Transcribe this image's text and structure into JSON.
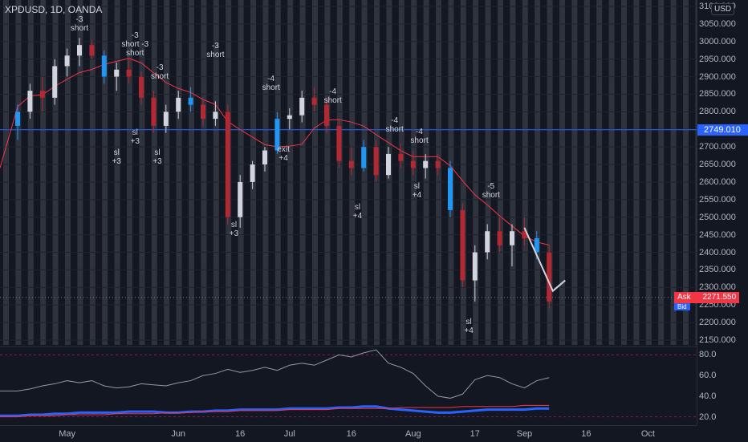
{
  "header": {
    "symbol": "XPDUSD, 1D, OANDA",
    "currency": "USD"
  },
  "price_axis": {
    "ticks": [
      "3100.000",
      "3050.000",
      "3000.000",
      "2950.000",
      "2900.000",
      "2850.000",
      "2800.000",
      "2750.000",
      "2700.000",
      "2650.000",
      "2600.000",
      "2550.000",
      "2500.000",
      "2450.000",
      "2400.000",
      "2350.000",
      "2300.000",
      "2250.000",
      "2200.000",
      "2150.000"
    ],
    "tick_values": [
      3100,
      3050,
      3000,
      2950,
      2900,
      2850,
      2800,
      2750,
      2700,
      2650,
      2600,
      2550,
      2500,
      2450,
      2400,
      2350,
      2300,
      2250,
      2200,
      2150
    ],
    "level_line": "2749.010",
    "level_value": 2749.01,
    "ask_label": "Ask",
    "ask_price": "2271.550",
    "bid_label": "Bid",
    "ask_value": 2271.55
  },
  "osc_axis": {
    "ticks": [
      "80.0",
      "60.0",
      "40.0",
      "20.0"
    ],
    "tick_values": [
      80,
      60,
      40,
      20
    ]
  },
  "time_axis": {
    "labels": [
      "May",
      "Jun",
      "16",
      "Jul",
      "16",
      "Aug",
      "17",
      "Sep",
      "16",
      "Oct"
    ],
    "label_x_index": [
      4,
      13,
      18,
      22,
      27,
      32,
      37,
      41,
      46,
      51
    ]
  },
  "annotations": [
    {
      "lines": [
        "-3",
        "short"
      ],
      "bar": 5,
      "price": 3075
    },
    {
      "lines": [
        "-3",
        "short -3",
        "short"
      ],
      "bar": 9.5,
      "price": 3030
    },
    {
      "lines": [
        "-3",
        "short"
      ],
      "bar": 11.5,
      "price": 2938
    },
    {
      "lines": [
        "sl",
        "+3"
      ],
      "bar": 8,
      "price": 2695
    },
    {
      "lines": [
        "sl",
        "+3"
      ],
      "bar": 9.5,
      "price": 2753
    },
    {
      "lines": [
        "sl",
        "+3"
      ],
      "bar": 11.3,
      "price": 2695
    },
    {
      "lines": [
        "-3",
        "short"
      ],
      "bar": 16,
      "price": 3000
    },
    {
      "lines": [
        "sl",
        "+3"
      ],
      "bar": 17.5,
      "price": 2490
    },
    {
      "lines": [
        "-4",
        "short"
      ],
      "bar": 20.5,
      "price": 2905
    },
    {
      "lines": [
        "exit",
        "+4"
      ],
      "bar": 21.5,
      "price": 2705
    },
    {
      "lines": [
        "-4",
        "short"
      ],
      "bar": 25.5,
      "price": 2870
    },
    {
      "lines": [
        "sl",
        "+4"
      ],
      "bar": 27.5,
      "price": 2540
    },
    {
      "lines": [
        "-4",
        "short"
      ],
      "bar": 30.5,
      "price": 2788
    },
    {
      "lines": [
        "-4",
        "short"
      ],
      "bar": 32.5,
      "price": 2755
    },
    {
      "lines": [
        "sl",
        "+4"
      ],
      "bar": 32.3,
      "price": 2600
    },
    {
      "lines": [
        "-5",
        "short"
      ],
      "bar": 38.3,
      "price": 2601
    },
    {
      "lines": [
        "sl",
        "+4"
      ],
      "bar": 36.5,
      "price": 2213
    }
  ],
  "chart_data": {
    "type": "candlestick",
    "title": "XPDUSD, 1D, OANDA",
    "ylim": [
      2150,
      3100
    ],
    "candles": [
      [
        2760,
        2820,
        2720,
        2800
      ],
      [
        2800,
        2880,
        2780,
        2860
      ],
      [
        2860,
        2900,
        2800,
        2840
      ],
      [
        2840,
        2950,
        2820,
        2930
      ],
      [
        2930,
        2980,
        2900,
        2960
      ],
      [
        2960,
        3010,
        2930,
        2990
      ],
      [
        2990,
        3005,
        2950,
        2960
      ],
      [
        2960,
        2975,
        2880,
        2900
      ],
      [
        2900,
        2940,
        2860,
        2920
      ],
      [
        2920,
        2950,
        2880,
        2900
      ],
      [
        2900,
        2915,
        2820,
        2840
      ],
      [
        2840,
        2860,
        2740,
        2760
      ],
      [
        2760,
        2820,
        2740,
        2800
      ],
      [
        2800,
        2860,
        2780,
        2840
      ],
      [
        2840,
        2870,
        2800,
        2820
      ],
      [
        2820,
        2840,
        2760,
        2780
      ],
      [
        2780,
        2830,
        2760,
        2800
      ],
      [
        2800,
        2820,
        2480,
        2500
      ],
      [
        2500,
        2620,
        2470,
        2600
      ],
      [
        2600,
        2660,
        2580,
        2650
      ],
      [
        2650,
        2700,
        2630,
        2690
      ],
      [
        2690,
        2800,
        2680,
        2780
      ],
      [
        2780,
        2810,
        2750,
        2790
      ],
      [
        2790,
        2860,
        2770,
        2840
      ],
      [
        2840,
        2870,
        2800,
        2820
      ],
      [
        2820,
        2840,
        2740,
        2760
      ],
      [
        2760,
        2780,
        2640,
        2660
      ],
      [
        2660,
        2700,
        2620,
        2640
      ],
      [
        2640,
        2720,
        2630,
        2700
      ],
      [
        2700,
        2720,
        2600,
        2620
      ],
      [
        2620,
        2700,
        2610,
        2680
      ],
      [
        2680,
        2710,
        2640,
        2660
      ],
      [
        2660,
        2690,
        2620,
        2640
      ],
      [
        2640,
        2680,
        2610,
        2660
      ],
      [
        2660,
        2680,
        2620,
        2640
      ],
      [
        2640,
        2660,
        2500,
        2520
      ],
      [
        2520,
        2540,
        2300,
        2320
      ],
      [
        2320,
        2420,
        2260,
        2400
      ],
      [
        2400,
        2480,
        2380,
        2460
      ],
      [
        2460,
        2500,
        2400,
        2420
      ],
      [
        2420,
        2480,
        2360,
        2460
      ],
      [
        2460,
        2500,
        2420,
        2440
      ],
      [
        2440,
        2460,
        2380,
        2400
      ],
      [
        2400,
        2420,
        2240,
        2260
      ]
    ],
    "indicator": {
      "name": "",
      "series": [
        {
          "color": "#9598a1",
          "values": [
            45,
            47,
            50,
            52,
            55,
            53,
            55,
            50,
            48,
            49,
            52,
            51,
            50,
            53,
            55,
            60,
            62,
            66,
            63,
            65,
            68,
            65,
            70,
            72,
            70,
            75,
            80,
            78,
            82,
            85,
            72,
            68,
            62,
            50,
            40,
            38,
            42,
            56,
            60,
            58,
            52,
            48,
            55,
            58
          ]
        },
        {
          "color": "#2962ff",
          "values": [
            21,
            22,
            22,
            23,
            23,
            24,
            24,
            24,
            24,
            25,
            25,
            25,
            24,
            24,
            25,
            25,
            26,
            26,
            27,
            27,
            27,
            27,
            28,
            28,
            28,
            28,
            29,
            29,
            30,
            30,
            28,
            27,
            26,
            25,
            24,
            24,
            25,
            26,
            27,
            27,
            27,
            27,
            28,
            28
          ]
        },
        {
          "color": "#f23645",
          "values": [
            20,
            21,
            21,
            21,
            22,
            22,
            22,
            22,
            23,
            23,
            23,
            23,
            24,
            24,
            24,
            25,
            25,
            25,
            26,
            26,
            26,
            26,
            27,
            27,
            27,
            27,
            28,
            28,
            28,
            28,
            28,
            29,
            29,
            29,
            29,
            29,
            30,
            30,
            30,
            30,
            30,
            31,
            31,
            31
          ]
        }
      ],
      "ylim": [
        15,
        85
      ]
    }
  }
}
